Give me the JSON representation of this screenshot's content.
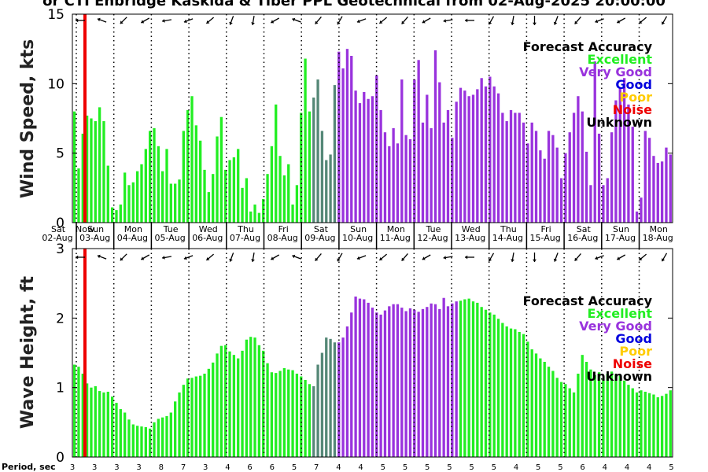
{
  "title": "or CTI Enbridge  Kaskida & Tiber PPL Geotechnical from 02-Aug-2025 20:00:00",
  "chart_data": [
    {
      "type": "bar",
      "ylabel": "Wind Speed, kts",
      "ylim": [
        0,
        15
      ],
      "yticks": [
        "0",
        "5",
        "10",
        "15"
      ],
      "values": [
        8.0,
        3.9,
        6.4,
        7.7,
        7.5,
        7.3,
        8.3,
        7.3,
        4.1,
        1.1,
        0.9,
        1.3,
        3.6,
        2.7,
        2.9,
        3.7,
        4.2,
        5.3,
        6.6,
        6.8,
        5.5,
        3.7,
        5.3,
        2.8,
        2.8,
        3.1,
        6.6,
        8.1,
        9.1,
        7.0,
        5.9,
        3.8,
        2.2,
        3.5,
        6.2,
        7.6,
        3.8,
        4.5,
        4.7,
        5.3,
        2.5,
        3.2,
        0.8,
        1.3,
        0.7,
        1.7,
        3.5,
        5.5,
        8.5,
        4.8,
        3.4,
        4.2,
        1.3,
        2.7,
        7.9,
        11.8,
        8.0,
        9.0,
        10.3,
        6.6,
        4.5,
        4.9,
        9.9,
        12.3,
        11.1,
        12.5,
        12.0,
        9.5,
        8.6,
        9.4,
        8.9,
        9.1,
        10.6,
        8.1,
        6.5,
        5.5,
        6.8,
        5.7,
        10.3,
        6.3,
        6.0,
        10.3,
        11.7,
        7.2,
        9.2,
        6.8,
        12.4,
        10.1,
        7.2,
        8.1,
        6.1,
        8.7,
        9.7,
        9.5,
        9.1,
        9.2,
        9.6,
        10.4,
        9.8,
        10.5,
        9.8,
        9.3,
        7.9,
        7.3,
        8.1,
        7.9,
        7.9,
        7.2,
        5.7,
        7.2,
        6.6,
        5.2,
        4.6,
        6.6,
        6.3,
        5.4,
        3.2,
        5.0,
        6.5,
        7.9,
        9.1,
        8.0,
        5.1,
        2.7,
        11.6,
        6.4,
        2.7,
        3.2,
        6.5,
        8.8,
        9.7,
        10.4,
        8.5,
        6.9,
        0.8,
        1.8,
        6.6,
        6.1,
        4.8,
        4.3,
        4.4,
        5.4,
        4.9
      ],
      "colors": {
        "Excellent": "#22ee22",
        "Very Good": "#9933dd",
        "Good": "#0000dd",
        "Poor": "#ffcc00",
        "Noise": "#ee0000",
        "Unknown": "#000000",
        "Transition": "#558877"
      }
    },
    {
      "type": "bar",
      "ylabel": "Wave Height, ft",
      "ylim": [
        0,
        3
      ],
      "yticks": [
        "0",
        "1",
        "2",
        "3"
      ],
      "values": [
        1.33,
        1.3,
        1.2,
        1.06,
        1.0,
        1.02,
        0.95,
        0.93,
        0.94,
        0.87,
        0.78,
        0.69,
        0.64,
        0.54,
        0.47,
        0.45,
        0.44,
        0.43,
        0.41,
        0.5,
        0.55,
        0.57,
        0.59,
        0.64,
        0.8,
        0.93,
        1.04,
        1.13,
        1.14,
        1.16,
        1.17,
        1.2,
        1.27,
        1.36,
        1.49,
        1.6,
        1.61,
        1.52,
        1.47,
        1.42,
        1.53,
        1.69,
        1.73,
        1.72,
        1.61,
        1.53,
        1.35,
        1.22,
        1.21,
        1.24,
        1.28,
        1.26,
        1.25,
        1.2,
        1.16,
        1.11,
        1.05,
        1.02,
        1.33,
        1.5,
        1.72,
        1.7,
        1.65,
        1.65,
        1.72,
        1.88,
        2.08,
        2.31,
        2.28,
        2.27,
        2.22,
        2.15,
        2.08,
        2.05,
        2.11,
        2.17,
        2.2,
        2.2,
        2.15,
        2.1,
        2.14,
        2.12,
        2.09,
        2.13,
        2.16,
        2.21,
        2.2,
        2.13,
        2.29,
        2.17,
        2.21,
        2.24,
        2.25,
        2.27,
        2.28,
        2.24,
        2.22,
        2.16,
        2.12,
        2.08,
        2.05,
        1.99,
        1.93,
        1.88,
        1.85,
        1.84,
        1.8,
        1.77,
        1.66,
        1.55,
        1.49,
        1.42,
        1.37,
        1.3,
        1.24,
        1.14,
        1.08,
        1.05,
        0.99,
        0.93,
        1.2,
        1.47,
        1.37,
        1.26,
        1.18,
        1.22,
        1.12,
        1.2,
        1.23,
        1.19,
        1.17,
        1.1,
        1.04,
        0.99,
        0.93,
        0.96,
        0.94,
        0.92,
        0.9,
        0.86,
        0.88,
        0.91,
        0.96
      ],
      "colors": {
        "Excellent": "#22ee22",
        "Very Good": "#9933dd",
        "Transition": "#558877"
      }
    }
  ],
  "legend": {
    "title": "Forecast Accuracy",
    "items": [
      {
        "label": "Excellent",
        "color": "#22ee22"
      },
      {
        "label": "Very Good",
        "color": "#9933dd"
      },
      {
        "label": "Good",
        "color": "#0000dd"
      },
      {
        "label": "Poor",
        "color": "#ffcc00"
      },
      {
        "label": "Noise",
        "color": "#ee0000"
      },
      {
        "label": "Unknown",
        "color": "#000000"
      }
    ]
  },
  "days": [
    {
      "dow": "Sat",
      "date": "02-Aug"
    },
    {
      "dow": "Sun",
      "date": "03-Aug"
    },
    {
      "dow": "Mon",
      "date": "04-Aug"
    },
    {
      "dow": "Tue",
      "date": "05-Aug"
    },
    {
      "dow": "Wed",
      "date": "06-Aug"
    },
    {
      "dow": "Thu",
      "date": "07-Aug"
    },
    {
      "dow": "Fri",
      "date": "08-Aug"
    },
    {
      "dow": "Sat",
      "date": "09-Aug"
    },
    {
      "dow": "Sun",
      "date": "10-Aug"
    },
    {
      "dow": "Mon",
      "date": "11-Aug"
    },
    {
      "dow": "Tue",
      "date": "12-Aug"
    },
    {
      "dow": "Wed",
      "date": "13-Aug"
    },
    {
      "dow": "Thu",
      "date": "14-Aug"
    },
    {
      "dow": "Fri",
      "date": "15-Aug"
    },
    {
      "dow": "Sat",
      "date": "16-Aug"
    },
    {
      "dow": "Sun",
      "date": "17-Aug"
    },
    {
      "dow": "Mon",
      "date": "18-Aug"
    }
  ],
  "now_label": "Now",
  "period_label": "Period, sec",
  "periods": [
    "3",
    "3",
    "3",
    "3",
    "8",
    "7",
    "3",
    "4",
    "6",
    "6",
    "5",
    "7",
    "4",
    "4",
    "5",
    "5",
    "5",
    "5",
    "5",
    "5",
    "4",
    "5",
    "5",
    "6",
    "4",
    "4",
    "4",
    "5"
  ]
}
